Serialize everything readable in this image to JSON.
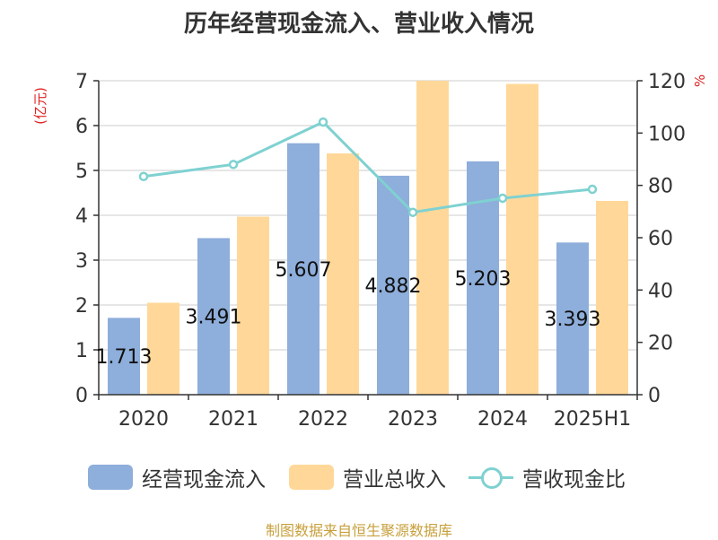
{
  "title": "历年经营现金流入、营业收入情况",
  "source": "制图数据来自恒生聚源数据库",
  "colors": {
    "cash_inflow": "#8eaedb",
    "revenue": "#ffd899",
    "ratio": "#7fd1d1",
    "axis": "#333333",
    "grid": "#cccccc",
    "unit": "#e02020"
  },
  "chart_data": {
    "type": "bar",
    "categories": [
      "2020",
      "2021",
      "2022",
      "2023",
      "2024",
      "2025H1"
    ],
    "series": [
      {
        "name": "经营现金流入",
        "type": "bar",
        "axis": "left",
        "values": [
          1.713,
          3.491,
          5.607,
          4.882,
          5.203,
          3.393
        ],
        "labels": [
          "1.713",
          "3.491",
          "5.607",
          "4.882",
          "5.203",
          "3.393"
        ]
      },
      {
        "name": "营业总收入",
        "type": "bar",
        "axis": "left",
        "values": [
          2.05,
          3.97,
          5.38,
          7.0,
          6.93,
          4.32
        ]
      },
      {
        "name": "营收现金比",
        "type": "line",
        "axis": "right",
        "values": [
          83.4,
          88.0,
          104.2,
          69.7,
          75.1,
          78.5
        ]
      }
    ],
    "y_left": {
      "label": "(亿元)",
      "ylim": [
        0,
        7
      ],
      "ticks": [
        "0",
        "1",
        "2",
        "3",
        "4",
        "5",
        "6",
        "7"
      ]
    },
    "y_right": {
      "label": "%",
      "ylim": [
        0,
        120
      ],
      "ticks": [
        "0",
        "20",
        "40",
        "60",
        "80",
        "100",
        "120"
      ]
    },
    "legend_position": "bottom",
    "grid": true
  }
}
